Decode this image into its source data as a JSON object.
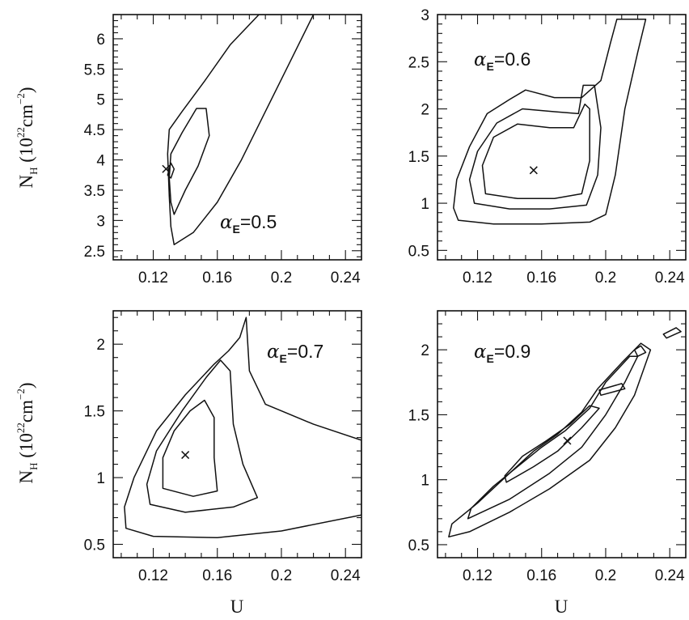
{
  "chart_data": [
    {
      "type": "contour",
      "panel": "top-left",
      "annotation": {
        "symbol": "α",
        "sub": "E",
        "text": "=0.5"
      },
      "xlabel": "",
      "ylabel": "N_H (10^22 cm^-2)",
      "xlim": [
        0.095,
        0.25
      ],
      "ylim": [
        2.35,
        6.4
      ],
      "xticks": [
        0.12,
        0.16,
        0.2,
        0.24
      ],
      "yticks": [
        2.5,
        3,
        3.5,
        4,
        4.5,
        5,
        5.5,
        6
      ],
      "best_fit": {
        "x": 0.128,
        "y": 3.85
      },
      "contours": [
        {
          "level": "outer",
          "points": [
            [
              0.133,
              2.6
            ],
            [
              0.145,
              2.8
            ],
            [
              0.16,
              3.3
            ],
            [
              0.175,
              4.0
            ],
            [
              0.19,
              4.8
            ],
            [
              0.205,
              5.6
            ],
            [
              0.22,
              6.4
            ],
            [
              0.186,
              6.4
            ],
            [
              0.168,
              5.9
            ],
            [
              0.152,
              5.3
            ],
            [
              0.138,
              4.8
            ],
            [
              0.13,
              4.5
            ],
            [
              0.129,
              4.1
            ],
            [
              0.13,
              3.4
            ],
            [
              0.131,
              2.9
            ]
          ]
        },
        {
          "level": "middle",
          "points": [
            [
              0.133,
              3.1
            ],
            [
              0.14,
              3.5
            ],
            [
              0.148,
              3.9
            ],
            [
              0.155,
              4.4
            ],
            [
              0.153,
              4.85
            ],
            [
              0.147,
              4.85
            ],
            [
              0.138,
              4.45
            ],
            [
              0.131,
              4.1
            ],
            [
              0.13,
              3.7
            ],
            [
              0.131,
              3.3
            ]
          ]
        },
        {
          "level": "inner",
          "points": [
            [
              0.129,
              3.75
            ],
            [
              0.131,
              3.95
            ],
            [
              0.133,
              3.85
            ],
            [
              0.131,
              3.7
            ]
          ]
        }
      ]
    },
    {
      "type": "contour",
      "panel": "top-right",
      "annotation": {
        "symbol": "α",
        "sub": "E",
        "text": "=0.6"
      },
      "xlabel": "",
      "ylabel": "",
      "xlim": [
        0.095,
        0.25
      ],
      "ylim": [
        0.4,
        3.0
      ],
      "xticks": [
        0.12,
        0.16,
        0.2,
        0.24
      ],
      "yticks": [
        0.5,
        1,
        1.5,
        2,
        2.5,
        3
      ],
      "best_fit": {
        "x": 0.155,
        "y": 1.35
      },
      "contours": [
        {
          "level": "outer",
          "points": [
            [
              0.108,
              0.82
            ],
            [
              0.13,
              0.78
            ],
            [
              0.16,
              0.78
            ],
            [
              0.19,
              0.8
            ],
            [
              0.2,
              0.88
            ],
            [
              0.206,
              1.3
            ],
            [
              0.212,
              2.0
            ],
            [
              0.22,
              2.6
            ],
            [
              0.225,
              2.95
            ],
            [
              0.207,
              2.95
            ],
            [
              0.203,
              2.7
            ],
            [
              0.197,
              2.3
            ],
            [
              0.185,
              2.12
            ],
            [
              0.168,
              2.12
            ],
            [
              0.15,
              2.2
            ],
            [
              0.14,
              2.1
            ],
            [
              0.126,
              1.95
            ],
            [
              0.115,
              1.6
            ],
            [
              0.107,
              1.25
            ],
            [
              0.105,
              0.95
            ]
          ]
        },
        {
          "level": "middle",
          "points": [
            [
              0.118,
              1.0
            ],
            [
              0.14,
              0.94
            ],
            [
              0.165,
              0.94
            ],
            [
              0.188,
              0.98
            ],
            [
              0.195,
              1.3
            ],
            [
              0.197,
              1.8
            ],
            [
              0.193,
              2.25
            ],
            [
              0.186,
              2.25
            ],
            [
              0.183,
              1.95
            ],
            [
              0.168,
              1.97
            ],
            [
              0.148,
              2.0
            ],
            [
              0.132,
              1.85
            ],
            [
              0.12,
              1.55
            ],
            [
              0.115,
              1.25
            ]
          ]
        },
        {
          "level": "inner",
          "points": [
            [
              0.125,
              1.1
            ],
            [
              0.145,
              1.05
            ],
            [
              0.168,
              1.05
            ],
            [
              0.185,
              1.1
            ],
            [
              0.19,
              1.45
            ],
            [
              0.19,
              2.0
            ],
            [
              0.187,
              2.05
            ],
            [
              0.18,
              1.8
            ],
            [
              0.165,
              1.8
            ],
            [
              0.145,
              1.84
            ],
            [
              0.13,
              1.7
            ],
            [
              0.123,
              1.4
            ]
          ]
        }
      ]
    },
    {
      "type": "contour",
      "panel": "bottom-left",
      "annotation": {
        "symbol": "α",
        "sub": "E",
        "text": "=0.7"
      },
      "xlabel": "U",
      "ylabel": "N_H (10^22 cm^-2)",
      "xlim": [
        0.095,
        0.25
      ],
      "ylim": [
        0.4,
        2.25
      ],
      "xticks": [
        0.12,
        0.16,
        0.2,
        0.24
      ],
      "yticks": [
        0.5,
        1,
        1.5,
        2
      ],
      "best_fit": {
        "x": 0.14,
        "y": 1.17
      },
      "contours": [
        {
          "level": "outer",
          "points": [
            [
              0.103,
              0.62
            ],
            [
              0.12,
              0.56
            ],
            [
              0.16,
              0.55
            ],
            [
              0.2,
              0.6
            ],
            [
              0.25,
              0.72
            ],
            [
              0.25,
              1.28
            ],
            [
              0.22,
              1.4
            ],
            [
              0.19,
              1.55
            ],
            [
              0.18,
              1.8
            ],
            [
              0.178,
              2.2
            ],
            [
              0.174,
              2.05
            ],
            [
              0.167,
              1.95
            ],
            [
              0.158,
              1.85
            ],
            [
              0.14,
              1.62
            ],
            [
              0.122,
              1.35
            ],
            [
              0.108,
              1.0
            ],
            [
              0.102,
              0.78
            ]
          ]
        },
        {
          "level": "middle",
          "points": [
            [
              0.118,
              0.8
            ],
            [
              0.14,
              0.74
            ],
            [
              0.17,
              0.78
            ],
            [
              0.185,
              0.85
            ],
            [
              0.176,
              1.1
            ],
            [
              0.17,
              1.4
            ],
            [
              0.168,
              1.8
            ],
            [
              0.162,
              1.88
            ],
            [
              0.153,
              1.75
            ],
            [
              0.138,
              1.5
            ],
            [
              0.122,
              1.2
            ],
            [
              0.116,
              0.95
            ]
          ]
        },
        {
          "level": "inner",
          "points": [
            [
              0.126,
              0.92
            ],
            [
              0.145,
              0.86
            ],
            [
              0.16,
              0.9
            ],
            [
              0.158,
              1.15
            ],
            [
              0.158,
              1.45
            ],
            [
              0.152,
              1.58
            ],
            [
              0.143,
              1.5
            ],
            [
              0.133,
              1.35
            ],
            [
              0.126,
              1.15
            ]
          ]
        }
      ]
    },
    {
      "type": "contour",
      "panel": "bottom-right",
      "annotation": {
        "symbol": "α",
        "sub": "E",
        "text": "=0.9"
      },
      "xlabel": "U",
      "ylabel": "",
      "xlim": [
        0.095,
        0.25
      ],
      "ylim": [
        0.4,
        2.3
      ],
      "xticks": [
        0.12,
        0.16,
        0.2,
        0.24
      ],
      "yticks": [
        0.5,
        1,
        1.5,
        2
      ],
      "best_fit": {
        "x": 0.176,
        "y": 1.3
      },
      "contours": [
        {
          "level": "outer",
          "points": [
            [
              0.102,
              0.56
            ],
            [
              0.115,
              0.6
            ],
            [
              0.14,
              0.75
            ],
            [
              0.165,
              0.93
            ],
            [
              0.19,
              1.15
            ],
            [
              0.206,
              1.4
            ],
            [
              0.218,
              1.65
            ],
            [
              0.228,
              2.0
            ],
            [
              0.222,
              2.05
            ],
            [
              0.21,
              1.9
            ],
            [
              0.195,
              1.7
            ],
            [
              0.185,
              1.52
            ],
            [
              0.17,
              1.35
            ],
            [
              0.155,
              1.22
            ],
            [
              0.14,
              1.05
            ],
            [
              0.12,
              0.82
            ],
            [
              0.104,
              0.66
            ]
          ]
        },
        {
          "level": "middle",
          "points": [
            [
              0.114,
              0.7
            ],
            [
              0.14,
              0.85
            ],
            [
              0.165,
              1.05
            ],
            [
              0.185,
              1.25
            ],
            [
              0.2,
              1.5
            ],
            [
              0.212,
              1.75
            ],
            [
              0.22,
              1.95
            ],
            [
              0.215,
              1.95
            ],
            [
              0.2,
              1.75
            ],
            [
              0.19,
              1.55
            ],
            [
              0.175,
              1.38
            ],
            [
              0.16,
              1.25
            ],
            [
              0.145,
              1.1
            ],
            [
              0.13,
              0.95
            ],
            [
              0.116,
              0.78
            ]
          ]
        },
        {
          "level": "inner",
          "points": [
            [
              0.138,
              0.98
            ],
            [
              0.155,
              1.1
            ],
            [
              0.17,
              1.22
            ],
            [
              0.185,
              1.4
            ],
            [
              0.196,
              1.55
            ],
            [
              0.19,
              1.57
            ],
            [
              0.178,
              1.43
            ],
            [
              0.163,
              1.3
            ],
            [
              0.148,
              1.18
            ],
            [
              0.137,
              1.03
            ]
          ]
        },
        {
          "level": "islands",
          "points": [
            [
              0.22,
              1.95
            ],
            [
              0.225,
              1.98
            ],
            [
              0.222,
              2.03
            ],
            [
              0.218,
              2.0
            ]
          ]
        },
        {
          "level": "islands",
          "points": [
            [
              0.238,
              2.09
            ],
            [
              0.247,
              2.14
            ],
            [
              0.244,
              2.17
            ],
            [
              0.236,
              2.12
            ]
          ]
        },
        {
          "level": "islands",
          "points": [
            [
              0.197,
              1.65
            ],
            [
              0.212,
              1.7
            ],
            [
              0.21,
              1.74
            ],
            [
              0.196,
              1.69
            ]
          ]
        }
      ]
    }
  ]
}
